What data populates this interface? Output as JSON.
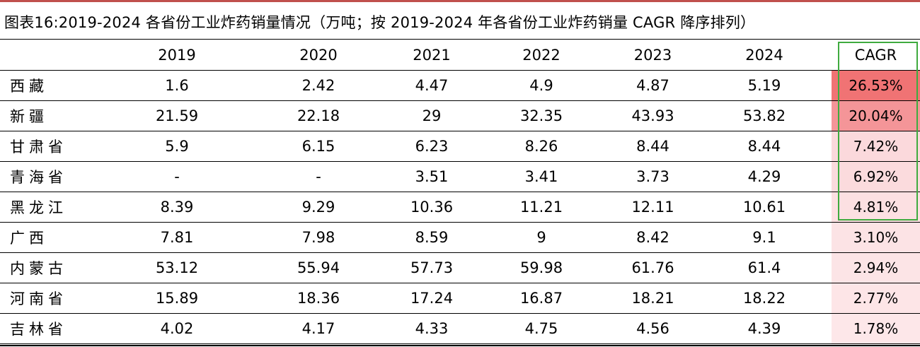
{
  "title": "图表16:2019-2024 各省份工业炸药销量情况（万吨；按 2019-2024 年各省份工业炸药销量 CAGR 降序排列）",
  "columns": [
    "",
    "2019",
    "2020",
    "2021",
    "2022",
    "2023",
    "2024",
    "CAGR"
  ],
  "rows": [
    {
      "province": "西藏",
      "values": [
        "1.6",
        "2.42",
        "4.47",
        "4.9",
        "4.87",
        "5.19"
      ],
      "cagr": "26.53%",
      "cagr_color": "#f07374"
    },
    {
      "province": "新疆",
      "values": [
        "21.59",
        "22.18",
        "29",
        "32.35",
        "43.93",
        "53.82"
      ],
      "cagr": "20.04%",
      "cagr_color": "#f49598"
    },
    {
      "province": "甘肃省",
      "values": [
        "5.9",
        "6.15",
        "6.23",
        "8.26",
        "8.44",
        "8.44"
      ],
      "cagr": "7.42%",
      "cagr_color": "#fbd9dc"
    },
    {
      "province": "青海省",
      "values": [
        "-",
        "-",
        "3.51",
        "3.41",
        "3.73",
        "4.29"
      ],
      "cagr": "6.92%",
      "cagr_color": "#fbdbdd"
    },
    {
      "province": "黑龙江",
      "values": [
        "8.39",
        "9.29",
        "10.36",
        "11.21",
        "12.11",
        "10.61"
      ],
      "cagr": "4.81%",
      "cagr_color": "#fce0e2"
    },
    {
      "province": "广西",
      "values": [
        "7.81",
        "7.98",
        "8.59",
        "9",
        "8.42",
        "9.1"
      ],
      "cagr": "3.10%",
      "cagr_color": "#fce3e5"
    },
    {
      "province": "内蒙古",
      "values": [
        "53.12",
        "55.94",
        "57.73",
        "59.98",
        "61.76",
        "61.4"
      ],
      "cagr": "2.94%",
      "cagr_color": "#fce4e6"
    },
    {
      "province": "河南省",
      "values": [
        "15.89",
        "18.36",
        "17.24",
        "16.87",
        "18.21",
        "18.22"
      ],
      "cagr": "2.77%",
      "cagr_color": "#fde5e7"
    },
    {
      "province": "吉林省",
      "values": [
        "4.02",
        "4.17",
        "4.33",
        "4.75",
        "4.56",
        "4.39"
      ],
      "cagr": "1.78%",
      "cagr_color": "#fde7e9"
    }
  ],
  "colors": {
    "title_rule": "#c0504d",
    "highlight_border": "#3fab3f"
  }
}
